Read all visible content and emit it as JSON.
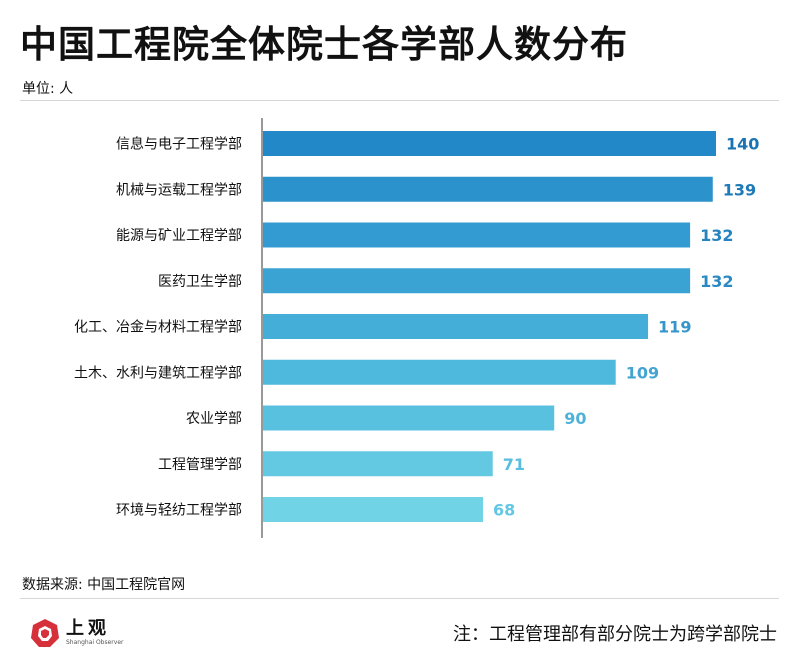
{
  "header": {
    "title": "中国工程院全体院士各学部人数分布",
    "unit": "单位: 人"
  },
  "footer": {
    "source": "数据来源: 中国工程院官网",
    "note": "注：工程管理部有部分院士为跨学部院士",
    "logo_cn": "上观",
    "logo_en": "Shanghai Observer"
  },
  "chart_data": {
    "type": "bar",
    "orientation": "horizontal",
    "title": "中国工程院全体院士各学部人数分布",
    "unit": "单位: 人",
    "categories": [
      "信息与电子工程学部",
      "机械与运载工程学部",
      "能源与矿业工程学部",
      "医药卫生学部",
      "化工、冶金与材料工程学部",
      "土木、水利与建筑工程学部",
      "农业学部",
      "工程管理学部",
      "环境与轻纺工程学部"
    ],
    "values": [
      140,
      139,
      132,
      132,
      119,
      109,
      90,
      71,
      68
    ],
    "xlim": [
      0,
      140
    ],
    "grid": false,
    "legend": "none",
    "bar_colors": [
      "#2388c8",
      "#2b92cc",
      "#339bd1",
      "#3aa3d4",
      "#44add8",
      "#4fb8dd",
      "#59c1e0",
      "#63c9e3",
      "#70d3e6"
    ],
    "label_colors": [
      "#1a74b3",
      "#1e7ab8",
      "#2583bf",
      "#2a89c2",
      "#3796c9",
      "#43a4d1",
      "#50b2d8",
      "#5abede",
      "#64c8e2"
    ]
  }
}
